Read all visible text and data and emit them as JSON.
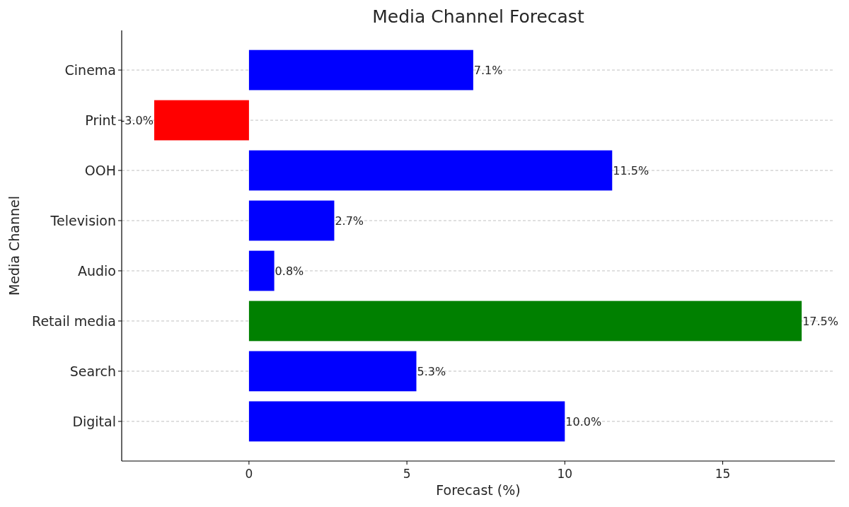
{
  "chart_data": {
    "type": "bar",
    "orientation": "horizontal",
    "title": "Media Channel Forecast",
    "xlabel": "Forecast (%)",
    "ylabel": "Media Channel",
    "categories": [
      "Cinema",
      "Print",
      "OOH",
      "Television",
      "Audio",
      "Retail media",
      "Search",
      "Digital"
    ],
    "values": [
      7.1,
      -3.0,
      11.5,
      2.7,
      0.8,
      17.5,
      5.3,
      10.0
    ],
    "colors": [
      "#0000ff",
      "#ff0000",
      "#0000ff",
      "#0000ff",
      "#0000ff",
      "#008000",
      "#0000ff",
      "#0000ff"
    ],
    "value_labels": [
      "7.1%",
      "-3.0%",
      "11.5%",
      "2.7%",
      "0.8%",
      "17.5%",
      "5.3%",
      "10.0%"
    ],
    "xlim": [
      -4.03,
      18.55
    ],
    "xticks": [
      0,
      5,
      10,
      15
    ],
    "grid": "y"
  }
}
